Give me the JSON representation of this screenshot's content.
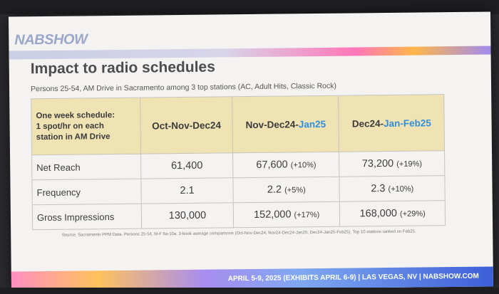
{
  "logo": {
    "text": "NABSHOW"
  },
  "slide": {
    "title": "Impact to radio schedules",
    "subtitle": "Persons 25-54, AM Drive in Sacramento among 3 top stations (AC, Adult Hits, Classic Rock)",
    "source": "Source: Sacramento PPM Data. Persons 25-54, M-F 6a-10a. 3-book average comparisons (Oct-Nov-Dec24; Nov24-Dec24-Jan25; Dec24-Jan25-Feb25). Top 10 stations ranked on Feb25.",
    "footer": "APRIL 5-9, 2025 (EXHIBITS APRIL 6-9) | LAS VEGAS, NV | NABSHOW.COM"
  },
  "table": {
    "corner_lines": [
      "One week schedule:",
      "1 spot/hr on each",
      "station in AM Drive"
    ],
    "headers": [
      {
        "plain": "Oct-Nov-Dec24",
        "highlight": ""
      },
      {
        "plain": "Nov-Dec24-",
        "highlight": "Jan25"
      },
      {
        "plain": "Dec24-",
        "highlight": "Jan-Feb25"
      }
    ],
    "rows": [
      {
        "label": "Net Reach",
        "cells": [
          {
            "v": "61,400",
            "p": ""
          },
          {
            "v": "67,600",
            "p": "(+10%)"
          },
          {
            "v": "73,200",
            "p": "(+19%)"
          }
        ]
      },
      {
        "label": "Frequency",
        "cells": [
          {
            "v": "2.1",
            "p": ""
          },
          {
            "v": "2.2",
            "p": "(+5%)"
          },
          {
            "v": "2.3",
            "p": "(+10%)"
          }
        ]
      },
      {
        "label": "Gross Impressions",
        "cells": [
          {
            "v": "130,000",
            "p": ""
          },
          {
            "v": "152,000",
            "p": "(+17%)"
          },
          {
            "v": "168,000",
            "p": "(+29%)"
          }
        ]
      }
    ]
  },
  "colors": {
    "header_bg": "#efe2b3",
    "highlight": "#2e8fe0"
  }
}
